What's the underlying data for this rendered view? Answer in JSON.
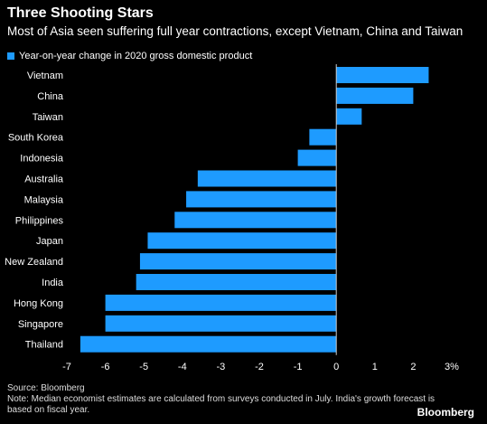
{
  "title": "Three Shooting Stars",
  "subtitle": "Most of Asia seen suffering full year contractions, except Vietnam, China and Taiwan",
  "source": "Source: Bloomberg",
  "note": "Note: Median economist estimates are calculated from surveys conducted in July. India's growth forecast is based on fiscal year.",
  "brand": "Bloomberg",
  "colors": {
    "bar": "#1e9bff",
    "background": "#000000",
    "text": "#ffffff",
    "zero_line": "#cccccc"
  },
  "chart_data": {
    "type": "bar",
    "orientation": "horizontal",
    "categories": [
      "Vietnam",
      "China",
      "Taiwan",
      "South Korea",
      "Indonesia",
      "Australia",
      "Malaysia",
      "Philippines",
      "Japan",
      "New Zealand",
      "India",
      "Hong Kong",
      "Singapore",
      "Thailand"
    ],
    "series": [
      {
        "name": "Year-on-year change in 2020 gross domestic product",
        "values": [
          2.4,
          2.0,
          0.66,
          -0.7,
          -1.0,
          -3.6,
          -3.9,
          -4.2,
          -4.9,
          -5.1,
          -5.2,
          -6.0,
          -6.0,
          -6.65
        ]
      }
    ],
    "xlim": [
      -7,
      3
    ],
    "ticks": [
      -7,
      -6,
      -5,
      -4,
      -3,
      -2,
      -1,
      0,
      1,
      2,
      3
    ],
    "tick_labels": [
      "-7",
      "-6",
      "-5",
      "-4",
      "-3",
      "-2",
      "-1",
      "0",
      "1",
      "2",
      "3%"
    ],
    "grid": false,
    "legend_position": "top-left"
  }
}
